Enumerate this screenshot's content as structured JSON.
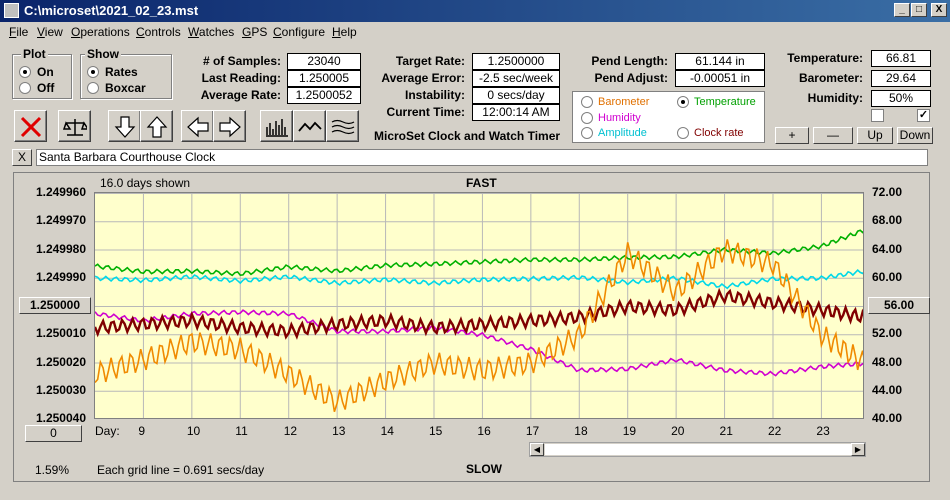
{
  "window": {
    "title": "C:\\microset\\2021_02_23.mst",
    "minimize": "_",
    "maximize": "□",
    "close": "X"
  },
  "menu": [
    "File",
    "View",
    "Operations",
    "Controls",
    "Watches",
    "GPS",
    "Configure",
    "Help"
  ],
  "plot_group": {
    "title": "Plot",
    "options": [
      {
        "label": "On",
        "selected": true
      },
      {
        "label": "Off",
        "selected": false
      }
    ]
  },
  "show_group": {
    "title": "Show",
    "options": [
      {
        "label": "Rates",
        "selected": true
      },
      {
        "label": "Boxcar",
        "selected": false
      }
    ]
  },
  "stats": {
    "samples_label": "# of Samples:",
    "samples": "23040",
    "last_label": "Last Reading:",
    "last": "1.250005",
    "avg_label": "Average Rate:",
    "avg": "1.2500052"
  },
  "target": {
    "target_label": "Target Rate:",
    "target": "1.2500000",
    "error_label": "Average Error:",
    "error": "-2.5 sec/week",
    "instab_label": "Instability:",
    "instab": "0 secs/day",
    "time_label": "Current Time:",
    "time": "12:00:14 AM",
    "app_caption": "MicroSet Clock and Watch Timer"
  },
  "pendulum": {
    "length_label": "Pend Length:",
    "length": "61.144 in",
    "adjust_label": "Pend Adjust:",
    "adjust": "-0.00051 in"
  },
  "sensor_select": [
    {
      "label": "Barometer",
      "color": "#e07000",
      "selected": false
    },
    {
      "label": "Temperature",
      "color": "#00a000",
      "selected": true
    },
    {
      "label": "Humidity",
      "color": "#d000d0",
      "selected": false
    },
    {
      "label": "Amplitude",
      "color": "#00c0d0",
      "selected": false
    },
    {
      "label": "Clock rate",
      "color": "#800000",
      "selected": false
    }
  ],
  "env": {
    "temp_label": "Temperature:",
    "temp": "66.81",
    "baro_label": "Barometer:",
    "baro": "29.64",
    "hum_label": "Humidity:",
    "hum": "50%"
  },
  "adjust_buttons": [
    "+",
    "—",
    "Up",
    "Down"
  ],
  "clock_name": "Santa Barbara Courthouse Clock",
  "clear_button": "X",
  "chart_header": {
    "days_shown": "16.0 days shown",
    "top": "FAST",
    "bottom": "SLOW",
    "grid_note": "Each grid line = 0.691 secs/day",
    "percent": "1.59%",
    "day_label": "Day:"
  },
  "left_center_button": "1.250000",
  "right_center_button": "56.00",
  "offset_button": "0",
  "chart_data": {
    "type": "line",
    "x_label": "Day:",
    "x": [
      9,
      10,
      11,
      12,
      13,
      14,
      15,
      16,
      17,
      18,
      19,
      20,
      21,
      22,
      23
    ],
    "xlim": [
      8,
      23.9
    ],
    "y_left_ticks": [
      "1.249960",
      "1.249970",
      "1.249980",
      "1.249990",
      "1.250000",
      "1.250010",
      "1.250020",
      "1.250030",
      "1.250040"
    ],
    "y_right_ticks": [
      "72.00",
      "68.00",
      "64.00",
      "60.00",
      "56.00",
      "52.00",
      "48.00",
      "44.00",
      "40.00"
    ],
    "right_ylim": [
      40,
      72
    ],
    "grid": true,
    "series": [
      {
        "color": "#00b000",
        "x": [
          8,
          9,
          10,
          11,
          12,
          13,
          14,
          15,
          16,
          17,
          18,
          19,
          20,
          21,
          22,
          23,
          23.9
        ],
        "y": [
          61.7,
          60.9,
          61.0,
          60.6,
          61.6,
          61.0,
          61.8,
          62.0,
          62.3,
          62.6,
          62.6,
          62.9,
          63.0,
          64.0,
          63.5,
          64.5,
          66.8
        ]
      },
      {
        "color": "#00d8e8",
        "x": [
          8,
          9,
          10,
          11,
          12,
          13,
          14,
          15,
          16,
          17,
          18,
          19,
          20,
          21,
          22,
          23,
          23.9
        ],
        "y": [
          60.0,
          59.7,
          60.2,
          59.6,
          60.2,
          59.3,
          59.8,
          59.3,
          59.8,
          59.9,
          60.1,
          59.4,
          60.0,
          58.8,
          59.9,
          60.0,
          61.0
        ]
      },
      {
        "color": "#d000d0",
        "x": [
          8,
          9,
          10,
          11,
          12,
          13,
          14,
          15,
          16,
          17,
          18,
          19,
          20,
          21,
          22,
          23,
          23.9
        ],
        "y": [
          55.0,
          54.0,
          55.0,
          55.2,
          55.0,
          52.5,
          52.5,
          53.0,
          52.0,
          50.0,
          47.0,
          47.2,
          48.5,
          47.0,
          46.5,
          47.5,
          48.0
        ]
      },
      {
        "color": "#800000",
        "x": [
          8,
          9,
          10,
          11,
          12,
          13,
          14,
          15,
          16,
          17,
          18,
          19,
          20,
          21,
          22,
          23,
          23.9
        ],
        "y": [
          53.0,
          53.5,
          54.0,
          53.0,
          52.5,
          53.5,
          54.0,
          53.0,
          53.5,
          54.0,
          54.5,
          56.0,
          55.5,
          57.5,
          56.5,
          55.5,
          54.5
        ]
      },
      {
        "color": "#f08a00",
        "x": [
          8,
          9,
          10,
          11,
          12,
          13,
          14,
          15,
          16,
          17,
          18,
          19,
          20,
          21,
          22,
          23,
          23.9
        ],
        "y": [
          46.5,
          48.5,
          51.0,
          50.0,
          46.5,
          42.5,
          45.5,
          48.0,
          47.0,
          48.0,
          52.0,
          63.5,
          58.0,
          64.0,
          62.0,
          52.0,
          48.0
        ]
      }
    ]
  }
}
